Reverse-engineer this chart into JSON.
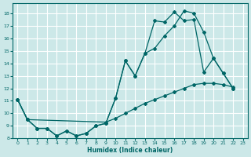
{
  "xlabel": "Humidex (Indice chaleur)",
  "bg_color": "#cce8e8",
  "grid_color": "#ffffff",
  "line_color": "#006666",
  "xlim": [
    -0.5,
    23.5
  ],
  "ylim": [
    8,
    18.8
  ],
  "yticks": [
    8,
    9,
    10,
    11,
    12,
    13,
    14,
    15,
    16,
    17,
    18
  ],
  "xticks": [
    0,
    1,
    2,
    3,
    4,
    5,
    6,
    7,
    8,
    9,
    10,
    11,
    12,
    13,
    14,
    15,
    16,
    17,
    18,
    19,
    20,
    21,
    22,
    23
  ],
  "line1": {
    "x": [
      0,
      1,
      2,
      3,
      4,
      5,
      6,
      7,
      8,
      9,
      10,
      11,
      12,
      13,
      14,
      15,
      16,
      17,
      18,
      19,
      20,
      21,
      22
    ],
    "y": [
      11.1,
      9.5,
      8.8,
      8.8,
      8.2,
      8.6,
      8.2,
      8.4,
      9.0,
      9.2,
      11.2,
      14.2,
      13.0,
      14.8,
      17.4,
      17.3,
      18.1,
      17.4,
      17.5,
      13.3,
      14.4,
      13.2,
      12.0
    ]
  },
  "line2": {
    "x": [
      0,
      1,
      2,
      3,
      4,
      5,
      6,
      7,
      8,
      9,
      10,
      11,
      12,
      13,
      14,
      15,
      16,
      17,
      18,
      19,
      20,
      21,
      22
    ],
    "y": [
      11.1,
      9.5,
      8.8,
      8.8,
      8.2,
      8.6,
      8.2,
      8.4,
      9.0,
      9.2,
      11.2,
      14.2,
      13.0,
      14.8,
      15.2,
      16.2,
      17.0,
      18.2,
      18.0,
      16.5,
      14.4,
      13.2,
      12.0
    ]
  },
  "line3": {
    "x": [
      0,
      1,
      9,
      10,
      11,
      12,
      13,
      14,
      15,
      16,
      17,
      18,
      19,
      20,
      21,
      22
    ],
    "y": [
      11.1,
      9.5,
      9.3,
      9.6,
      10.0,
      10.4,
      10.8,
      11.1,
      11.4,
      11.7,
      12.0,
      12.3,
      12.4,
      12.4,
      12.3,
      12.1
    ]
  }
}
